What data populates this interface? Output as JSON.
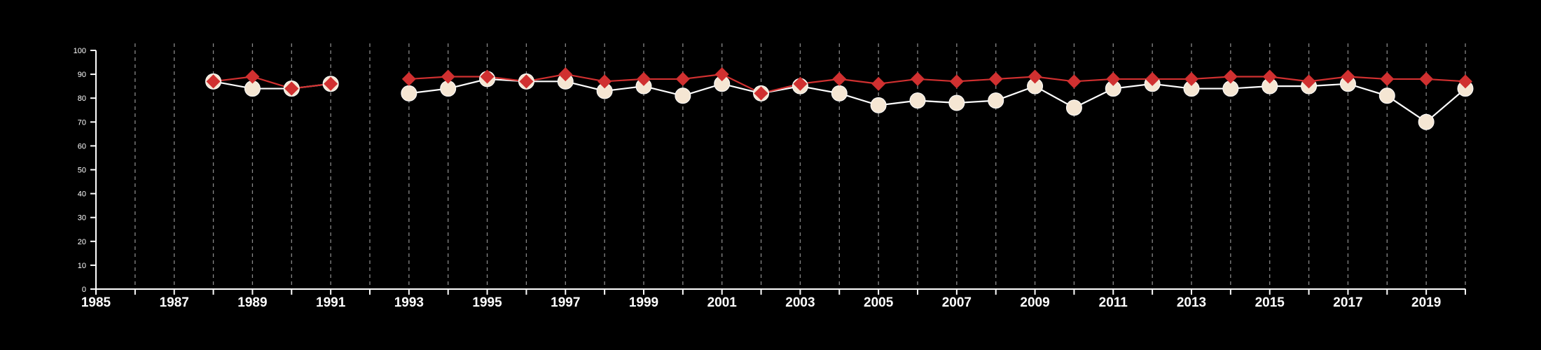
{
  "chart_data": {
    "type": "line",
    "title": "",
    "xlabel": "",
    "ylabel": "",
    "xlim": [
      1985,
      2020
    ],
    "ylim": [
      0,
      100
    ],
    "x_ticks": [
      1985,
      1987,
      1989,
      1991,
      1993,
      1995,
      1997,
      1999,
      2001,
      2003,
      2005,
      2007,
      2009,
      2011,
      2013,
      2015,
      2017,
      2019
    ],
    "y_ticks": [
      0,
      10,
      20,
      30,
      40,
      50,
      60,
      70,
      80,
      90,
      100
    ],
    "grid": "vertical dashed lines at every year",
    "legend": "none",
    "x": [
      1988,
      1989,
      1990,
      1991,
      1992,
      1993,
      1994,
      1995,
      1996,
      1997,
      1998,
      1999,
      2000,
      2001,
      2002,
      2003,
      2004,
      2005,
      2006,
      2007,
      2008,
      2009,
      2010,
      2011,
      2012,
      2013,
      2014,
      2015,
      2016,
      2017,
      2018,
      2019,
      2020
    ],
    "series": [
      {
        "marker": "circle",
        "color": "#f5e6d3",
        "line_color": "#ffffff",
        "values": [
          87,
          84,
          84,
          86,
          null,
          82,
          84,
          88,
          87,
          87,
          83,
          85,
          81,
          86,
          82,
          85,
          82,
          77,
          79,
          78,
          79,
          85,
          76,
          84,
          86,
          84,
          84,
          85,
          85,
          86,
          81,
          70,
          84
        ]
      },
      {
        "marker": "diamond",
        "color": "#d03030",
        "line_color": "#d03030",
        "values": [
          87,
          89,
          84,
          86,
          null,
          88,
          89,
          89,
          87,
          90,
          87,
          88,
          88,
          90,
          82,
          86,
          88,
          86,
          88,
          87,
          88,
          89,
          87,
          88,
          88,
          88,
          89,
          89,
          87,
          89,
          88,
          88,
          87
        ]
      }
    ]
  },
  "colors": {
    "background": "#000000",
    "axis": "#ffffff",
    "grid": "#888888"
  }
}
